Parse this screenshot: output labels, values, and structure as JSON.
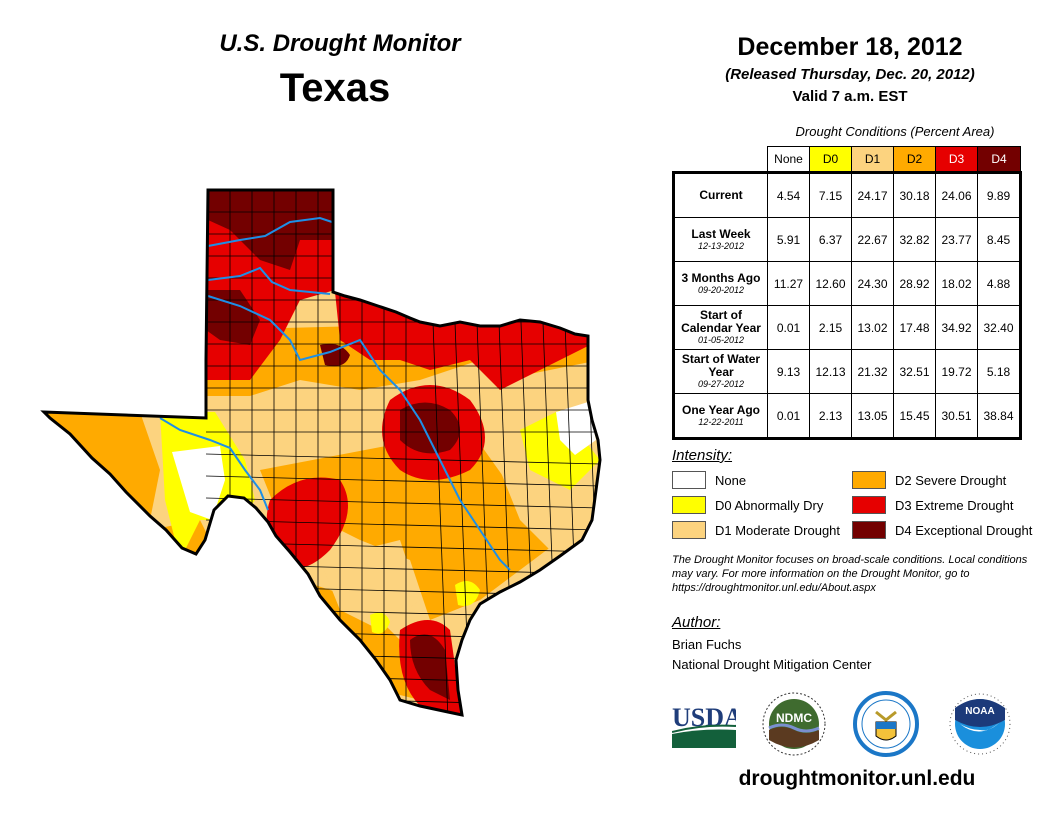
{
  "header": {
    "title": "U.S. Drought Monitor",
    "state": "Texas",
    "date": "December 18, 2012",
    "released": "(Released Thursday, Dec. 20, 2012)",
    "valid": "Valid 7 a.m. EST"
  },
  "colors": {
    "none": "#ffffff",
    "d0": "#ffff00",
    "d1": "#fcd37f",
    "d2": "#ffaa00",
    "d3": "#e60000",
    "d4": "#730000",
    "river": "#1e8fe6",
    "county_line": "#000000"
  },
  "table": {
    "caption": "Drought Conditions (Percent Area)",
    "columns": [
      "None",
      "D0",
      "D1",
      "D2",
      "D3",
      "D4"
    ],
    "rows": [
      {
        "label": "Current",
        "sub": "",
        "values": [
          "4.54",
          "7.15",
          "24.17",
          "30.18",
          "24.06",
          "9.89"
        ]
      },
      {
        "label": "Last Week",
        "sub": "12-13-2012",
        "values": [
          "5.91",
          "6.37",
          "22.67",
          "32.82",
          "23.77",
          "8.45"
        ]
      },
      {
        "label": "3 Months Ago",
        "sub": "09-20-2012",
        "values": [
          "11.27",
          "12.60",
          "24.30",
          "28.92",
          "18.02",
          "4.88"
        ]
      },
      {
        "label": "Start of Calendar Year",
        "sub": "01-05-2012",
        "values": [
          "0.01",
          "2.15",
          "13.02",
          "17.48",
          "34.92",
          "32.40"
        ]
      },
      {
        "label": "Start of Water Year",
        "sub": "09-27-2012",
        "values": [
          "9.13",
          "12.13",
          "21.32",
          "32.51",
          "19.72",
          "5.18"
        ]
      },
      {
        "label": "One Year Ago",
        "sub": "12-22-2011",
        "values": [
          "0.01",
          "2.13",
          "13.05",
          "15.45",
          "30.51",
          "38.84"
        ]
      }
    ]
  },
  "legend": {
    "title": "Intensity:",
    "items": [
      {
        "key": "none",
        "label": "None"
      },
      {
        "key": "d0",
        "label": "D0 Abnormally Dry"
      },
      {
        "key": "d1",
        "label": "D1 Moderate Drought"
      },
      {
        "key": "d2",
        "label": "D2 Severe Drought"
      },
      {
        "key": "d3",
        "label": "D3 Extreme Drought"
      },
      {
        "key": "d4",
        "label": "D4 Exceptional Drought"
      }
    ]
  },
  "note": "The Drought Monitor focuses on broad-scale conditions. Local conditions may vary. For more information on the Drought Monitor, go to https://droughtmonitor.unl.edu/About.aspx",
  "author": {
    "title": "Author:",
    "name": "Brian Fuchs",
    "org": "National Drought Mitigation Center"
  },
  "logos": [
    {
      "name": "usda-logo",
      "text": "USDA"
    },
    {
      "name": "ndmc-logo",
      "text": "NDMC"
    },
    {
      "name": "commerce-seal-logo",
      "text": ""
    },
    {
      "name": "noaa-logo",
      "text": "NOAA"
    }
  ],
  "website": "droughtmonitor.unl.edu"
}
